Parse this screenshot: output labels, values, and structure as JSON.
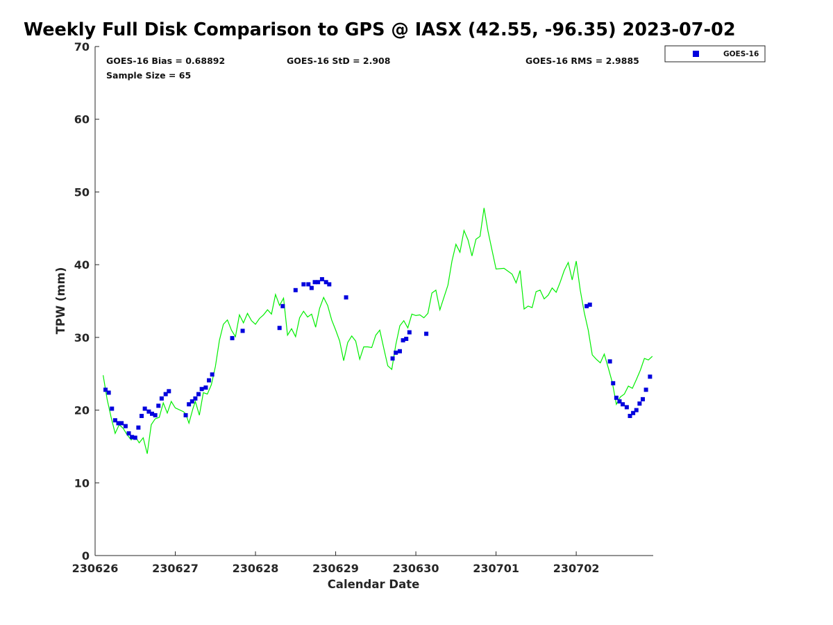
{
  "chart_data": {
    "type": "scatter",
    "title": "Weekly Full Disk Comparison to GPS @ IASX (42.55, -96.35) 2023-07-02",
    "xlabel": "Calendar Date",
    "ylabel": "TPW (mm)",
    "xlim": [
      0,
      6.96
    ],
    "ylim": [
      0,
      70
    ],
    "x_tick_labels": [
      "230626",
      "230627",
      "230628",
      "230629",
      "230630",
      "230701",
      "230702"
    ],
    "y_ticks": [
      0,
      10,
      20,
      30,
      40,
      50,
      60,
      70
    ],
    "grid": false,
    "legend_placement": "outside top-right",
    "stats": {
      "bias": "GOES-16 Bias = 0.68892",
      "std": "GOES-16 StD = 2.908",
      "rms": "GOES-16 RMS = 2.9885",
      "sample": "Sample Size = 65"
    },
    "series": [
      {
        "name": "GOES-16",
        "kind": "markers",
        "color": "#0000dd",
        "x": [
          0.13,
          0.17,
          0.21,
          0.25,
          0.29,
          0.33,
          0.38,
          0.42,
          0.46,
          0.5,
          0.54,
          0.58,
          0.62,
          0.67,
          0.71,
          0.75,
          0.79,
          0.83,
          0.88,
          0.92,
          1.13,
          1.17,
          1.21,
          1.25,
          1.29,
          1.33,
          1.38,
          1.42,
          1.46,
          1.71,
          1.84,
          2.3,
          2.34,
          2.5,
          2.6,
          2.66,
          2.7,
          2.74,
          2.78,
          2.83,
          2.88,
          2.92,
          3.13,
          3.71,
          3.75,
          3.8,
          3.84,
          3.88,
          3.92,
          4.13,
          6.13,
          6.17,
          6.42,
          6.46,
          6.5,
          6.54,
          6.58,
          6.63,
          6.67,
          6.71,
          6.75,
          6.79,
          6.83,
          6.87,
          6.92
        ],
        "y": [
          22.8,
          22.4,
          20.2,
          18.6,
          18.2,
          18.2,
          17.8,
          16.8,
          16.3,
          16.2,
          17.6,
          19.2,
          20.2,
          19.8,
          19.5,
          19.3,
          20.6,
          21.6,
          22.2,
          22.6,
          19.3,
          20.8,
          21.2,
          21.6,
          22.2,
          22.9,
          23.1,
          24.1,
          24.9,
          29.9,
          30.9,
          31.3,
          34.3,
          36.5,
          37.3,
          37.3,
          36.8,
          37.6,
          37.6,
          38.0,
          37.6,
          37.3,
          35.5,
          27.1,
          27.9,
          28.1,
          29.6,
          29.8,
          30.7,
          30.5,
          34.3,
          34.5,
          26.7,
          23.7,
          21.7,
          21.2,
          20.8,
          20.4,
          19.2,
          19.6,
          20.0,
          20.9,
          21.5,
          22.8,
          24.6
        ]
      },
      {
        "name": "GPS",
        "kind": "line",
        "color": "#00ee00",
        "x": [
          0.1,
          0.15,
          0.2,
          0.25,
          0.3,
          0.35,
          0.4,
          0.45,
          0.5,
          0.55,
          0.6,
          0.65,
          0.7,
          0.75,
          0.8,
          0.85,
          0.9,
          0.95,
          1.0,
          1.1,
          1.13,
          1.17,
          1.22,
          1.25,
          1.3,
          1.35,
          1.4,
          1.45,
          1.5,
          1.55,
          1.6,
          1.65,
          1.7,
          1.75,
          1.8,
          1.85,
          1.9,
          1.95,
          2.0,
          2.05,
          2.1,
          2.15,
          2.2,
          2.25,
          2.3,
          2.35,
          2.4,
          2.45,
          2.5,
          2.55,
          2.6,
          2.65,
          2.7,
          2.75,
          2.8,
          2.85,
          2.9,
          2.95,
          3.0,
          3.05,
          3.1,
          3.15,
          3.2,
          3.25,
          3.3,
          3.35,
          3.4,
          3.45,
          3.5,
          3.55,
          3.6,
          3.65,
          3.7,
          3.75,
          3.8,
          3.85,
          3.9,
          3.95,
          4.0,
          4.05,
          4.1,
          4.15,
          4.2,
          4.25,
          4.3,
          4.35,
          4.4,
          4.45,
          4.5,
          4.55,
          4.6,
          4.65,
          4.7,
          4.75,
          4.8,
          4.85,
          4.9,
          4.95,
          5.0,
          5.1,
          5.2,
          5.25,
          5.3,
          5.35,
          5.4,
          5.45,
          5.5,
          5.55,
          5.6,
          5.65,
          5.7,
          5.75,
          5.8,
          5.85,
          5.9,
          5.95,
          6.0,
          6.05,
          6.1,
          6.15,
          6.2,
          6.25,
          6.3,
          6.35,
          6.4,
          6.45,
          6.5,
          6.55,
          6.6,
          6.65,
          6.7,
          6.75,
          6.8,
          6.85,
          6.9,
          6.95
        ],
        "y": [
          24.8,
          21.5,
          19.0,
          16.8,
          18.0,
          17.5,
          16.6,
          15.9,
          16.4,
          15.5,
          16.2,
          14.0,
          18.0,
          18.8,
          19.0,
          21.0,
          19.6,
          21.2,
          20.3,
          19.8,
          19.5,
          18.2,
          20.2,
          21.2,
          19.3,
          22.4,
          22.2,
          23.5,
          26.0,
          29.6,
          31.8,
          32.4,
          31.0,
          30.1,
          33.1,
          32.0,
          33.3,
          32.3,
          31.8,
          32.6,
          33.1,
          33.8,
          33.2,
          35.9,
          34.4,
          35.4,
          30.3,
          31.2,
          30.1,
          32.7,
          33.6,
          32.8,
          33.2,
          31.4,
          34.0,
          35.5,
          34.4,
          32.4,
          31.0,
          29.5,
          26.8,
          29.3,
          30.2,
          29.5,
          27.0,
          28.7,
          28.7,
          28.6,
          30.3,
          31.0,
          28.5,
          26.1,
          25.6,
          29.0,
          31.6,
          32.3,
          31.3,
          33.2,
          33.0,
          33.1,
          32.7,
          33.3,
          36.1,
          36.5,
          33.8,
          35.5,
          37.2,
          40.5,
          42.8,
          41.7,
          44.7,
          43.4,
          41.2,
          43.5,
          43.9,
          47.8,
          44.6,
          42.0,
          39.4,
          39.5,
          38.7,
          37.5,
          39.2,
          33.9,
          34.3,
          34.1,
          36.3,
          36.5,
          35.3,
          35.8,
          36.8,
          36.2,
          37.6,
          39.2,
          40.3,
          37.9,
          40.5,
          36.5,
          33.4,
          31.0,
          27.6,
          27.0,
          26.5,
          27.7,
          25.8,
          23.8,
          20.8,
          21.8,
          22.2,
          23.3,
          23.0,
          24.2,
          25.5,
          27.1,
          26.9,
          27.4
        ]
      }
    ]
  }
}
